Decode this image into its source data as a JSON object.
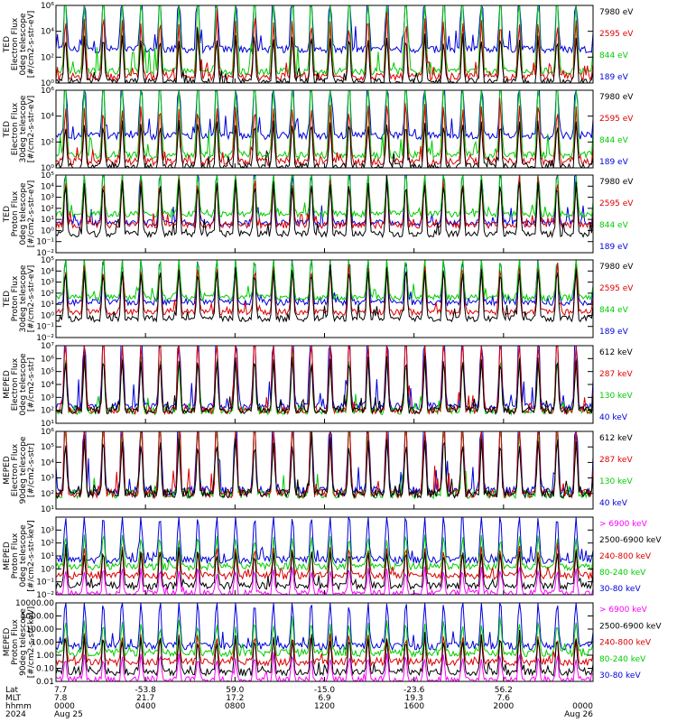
{
  "chart_data": [
    {
      "type": "line",
      "ylabel": [
        "TED",
        "Electron Flux",
        "0deg telescope",
        "[#/cm2-s-str-eV]"
      ],
      "yscale": "log",
      "ylim": [
        1,
        1000000
      ],
      "ticks": [
        {
          "v": 1,
          "label": "10⁰"
        },
        {
          "v": 100,
          "label": "10²"
        },
        {
          "v": 10000,
          "label": "10⁴"
        },
        {
          "v": 1000000,
          "label": "10⁶"
        }
      ],
      "series": [
        {
          "name": "7980 eV",
          "color": "#000000",
          "floor": 1.2,
          "peak": 60
        },
        {
          "name": "2595 eV",
          "color": "#dd0000",
          "floor": 3,
          "peak": 400
        },
        {
          "name": "844 eV",
          "color": "#00cc00",
          "floor": 8,
          "peak": 20000
        },
        {
          "name": "189 eV",
          "color": "#0000dd",
          "floor": 400,
          "peak": 200000
        }
      ],
      "legend_position": "right"
    },
    {
      "type": "line",
      "ylabel": [
        "TED",
        "Electron Flux",
        "30deg telescope",
        "[#/cm2-s-str-eV]"
      ],
      "yscale": "log",
      "ylim": [
        1,
        1000000
      ],
      "ticks": [
        {
          "v": 1,
          "label": "10⁰"
        },
        {
          "v": 100,
          "label": "10²"
        },
        {
          "v": 10000,
          "label": "10⁴"
        },
        {
          "v": 1000000,
          "label": "10⁶"
        }
      ],
      "series": [
        {
          "name": "7980 eV",
          "color": "#000000",
          "floor": 1.2,
          "peak": 60
        },
        {
          "name": "2595 eV",
          "color": "#dd0000",
          "floor": 3,
          "peak": 400
        },
        {
          "name": "844 eV",
          "color": "#00cc00",
          "floor": 10,
          "peak": 20000
        },
        {
          "name": "189 eV",
          "color": "#0000dd",
          "floor": 300,
          "peak": 150000
        }
      ],
      "legend_position": "right"
    },
    {
      "type": "line",
      "ylabel": [
        "TED",
        "Proton Flux",
        "0deg telescope",
        "[#/cm2-s-str-eV]"
      ],
      "yscale": "log",
      "ylim": [
        0.01,
        100000
      ],
      "ticks": [
        {
          "v": 0.01,
          "label": "10⁻²"
        },
        {
          "v": 0.1,
          "label": "10⁻¹"
        },
        {
          "v": 1,
          "label": "10⁰"
        },
        {
          "v": 10,
          "label": "10¹"
        },
        {
          "v": 100,
          "label": "10²"
        },
        {
          "v": 1000,
          "label": "10³"
        },
        {
          "v": 10000,
          "label": "10⁴"
        },
        {
          "v": 100000,
          "label": "10⁵"
        }
      ],
      "series": [
        {
          "name": "7980 eV",
          "color": "#000000",
          "floor": 0.5,
          "peak": 100
        },
        {
          "name": "2595 eV",
          "color": "#dd0000",
          "floor": 3,
          "peak": 300
        },
        {
          "name": "844 eV",
          "color": "#00cc00",
          "floor": 30,
          "peak": 3000
        },
        {
          "name": "189 eV",
          "color": "#0000dd",
          "floor": 5,
          "peak": 2000
        }
      ],
      "legend_position": "right"
    },
    {
      "type": "line",
      "ylabel": [
        "TED",
        "Proton Flux",
        "30deg telescope",
        "[#/cm2-s-str-eV]"
      ],
      "yscale": "log",
      "ylim": [
        0.01,
        100000
      ],
      "ticks": [
        {
          "v": 0.01,
          "label": "10⁻²"
        },
        {
          "v": 0.1,
          "label": "10⁻¹"
        },
        {
          "v": 1,
          "label": "10⁰"
        },
        {
          "v": 10,
          "label": "10¹"
        },
        {
          "v": 100,
          "label": "10²"
        },
        {
          "v": 1000,
          "label": "10³"
        },
        {
          "v": 10000,
          "label": "10⁴"
        },
        {
          "v": 100000,
          "label": "10⁵"
        }
      ],
      "series": [
        {
          "name": "7980 eV",
          "color": "#000000",
          "floor": 0.5,
          "peak": 80
        },
        {
          "name": "2595 eV",
          "color": "#dd0000",
          "floor": 2,
          "peak": 200
        },
        {
          "name": "844 eV",
          "color": "#00cc00",
          "floor": 40,
          "peak": 2500
        },
        {
          "name": "189 eV",
          "color": "#0000dd",
          "floor": 15,
          "peak": 1500
        }
      ],
      "legend_position": "right"
    },
    {
      "type": "line",
      "ylabel": [
        "MEPED",
        "Electron Flux",
        "0deg telescope",
        "[#/cm2-s-str]"
      ],
      "yscale": "log",
      "ylim": [
        10,
        10000000
      ],
      "ticks": [
        {
          "v": 10,
          "label": "10¹"
        },
        {
          "v": 100,
          "label": "10²"
        },
        {
          "v": 1000,
          "label": "10³"
        },
        {
          "v": 10000,
          "label": "10⁴"
        },
        {
          "v": 100000,
          "label": "10⁵"
        },
        {
          "v": 1000000,
          "label": "10⁶"
        },
        {
          "v": 10000000,
          "label": "10⁷"
        }
      ],
      "series": [
        {
          "name": "612 keV",
          "color": "#000000",
          "floor": 100,
          "peak": 10000
        },
        {
          "name": "287 keV",
          "color": "#dd0000",
          "floor": 100,
          "peak": 100000
        },
        {
          "name": "130 keV",
          "color": "#00cc00",
          "floor": 90,
          "peak": 10000
        },
        {
          "name": "40 keV",
          "color": "#0000dd",
          "floor": 200,
          "peak": 1000000
        }
      ],
      "legend_position": "right"
    },
    {
      "type": "line",
      "ylabel": [
        "MEPED",
        "Electron Flux",
        "90deg telescope",
        "[#/cm2-s-str]"
      ],
      "yscale": "log",
      "ylim": [
        10,
        1000000
      ],
      "ticks": [
        {
          "v": 10,
          "label": "10¹"
        },
        {
          "v": 100,
          "label": "10²"
        },
        {
          "v": 1000,
          "label": "10³"
        },
        {
          "v": 10000,
          "label": "10⁴"
        },
        {
          "v": 100000,
          "label": "10⁵"
        },
        {
          "v": 1000000,
          "label": "10⁶"
        }
      ],
      "series": [
        {
          "name": "612 keV",
          "color": "#000000",
          "floor": 100,
          "peak": 5000
        },
        {
          "name": "287 keV",
          "color": "#dd0000",
          "floor": 100,
          "peak": 50000
        },
        {
          "name": "130 keV",
          "color": "#00cc00",
          "floor": 90,
          "peak": 20000
        },
        {
          "name": "40 keV",
          "color": "#0000dd",
          "floor": 150,
          "peak": 500000
        }
      ],
      "legend_position": "right"
    },
    {
      "type": "line",
      "ylabel": [
        "MEPED",
        "Proton Flux",
        "0deg telescope",
        "[#/cm2-s-str-keV]"
      ],
      "yscale": "log",
      "ylim": [
        0.01,
        10000
      ],
      "ticks": [
        {
          "v": 0.01,
          "label": "10⁻²"
        },
        {
          "v": 0.1,
          "label": "10⁻¹"
        },
        {
          "v": 1,
          "label": "10⁰"
        },
        {
          "v": 10,
          "label": "10¹"
        },
        {
          "v": 100,
          "label": "10²"
        },
        {
          "v": 1000,
          "label": "10³"
        }
      ],
      "series": [
        {
          "name": "> 6900 keV",
          "color": "#ff00ff",
          "floor": 0.012,
          "peak": 0.1
        },
        {
          "name": "2500-6900 keV",
          "color": "#000000",
          "floor": 0.05,
          "peak": 1
        },
        {
          "name": "240-800 keV",
          "color": "#dd0000",
          "floor": 0.3,
          "peak": 3
        },
        {
          "name": "80-240 keV",
          "color": "#00cc00",
          "floor": 1.5,
          "peak": 20
        },
        {
          "name": "30-80 keV",
          "color": "#0000dd",
          "floor": 5,
          "peak": 300
        }
      ],
      "legend_position": "right"
    },
    {
      "type": "line",
      "ylabel": [
        "MEPED",
        "Proton Flux",
        "90deg telescope",
        "[#/cm2-s-str-keV]"
      ],
      "yscale": "log",
      "ylim": [
        0.01,
        10000
      ],
      "ticks": [
        {
          "v": 0.01,
          "label": "0.01"
        },
        {
          "v": 0.1,
          "label": "0.10"
        },
        {
          "v": 1,
          "label": "1.00"
        },
        {
          "v": 10,
          "label": "10.00"
        },
        {
          "v": 100,
          "label": "100.00"
        },
        {
          "v": 1000,
          "label": "1000.00"
        },
        {
          "v": 10000,
          "label": "10000.00"
        }
      ],
      "series": [
        {
          "name": "> 6900 keV",
          "color": "#ff00ff",
          "floor": 0.012,
          "peak": 0.1
        },
        {
          "name": "2500-6900 keV",
          "color": "#000000",
          "floor": 0.05,
          "peak": 1
        },
        {
          "name": "240-800 keV",
          "color": "#dd0000",
          "floor": 0.3,
          "peak": 3
        },
        {
          "name": "80-240 keV",
          "color": "#00cc00",
          "floor": 1.5,
          "peak": 20
        },
        {
          "name": "30-80 keV",
          "color": "#0000dd",
          "floor": 5,
          "peak": 300
        }
      ],
      "legend_position": "right"
    }
  ],
  "x_axis": {
    "row_labels": [
      "Lat",
      "MLT",
      "hhmm",
      "2024"
    ],
    "columns": [
      {
        "lat": "7.7",
        "mlt": "7.8",
        "hhmm": "0000",
        "date": "Aug 25"
      },
      {
        "lat": "-53.8",
        "mlt": "21.7",
        "hhmm": "0400",
        "date": ""
      },
      {
        "lat": "59.0",
        "mlt": "17.2",
        "hhmm": "0800",
        "date": ""
      },
      {
        "lat": "-15.0",
        "mlt": "6.9",
        "hhmm": "1200",
        "date": ""
      },
      {
        "lat": "-23.6",
        "mlt": "19.3",
        "hhmm": "1600",
        "date": ""
      },
      {
        "lat": "56.2",
        "mlt": "7.6",
        "hhmm": "2000",
        "date": ""
      },
      {
        "lat": "",
        "mlt": "",
        "hhmm": "0000",
        "date": "Aug 26"
      }
    ]
  }
}
